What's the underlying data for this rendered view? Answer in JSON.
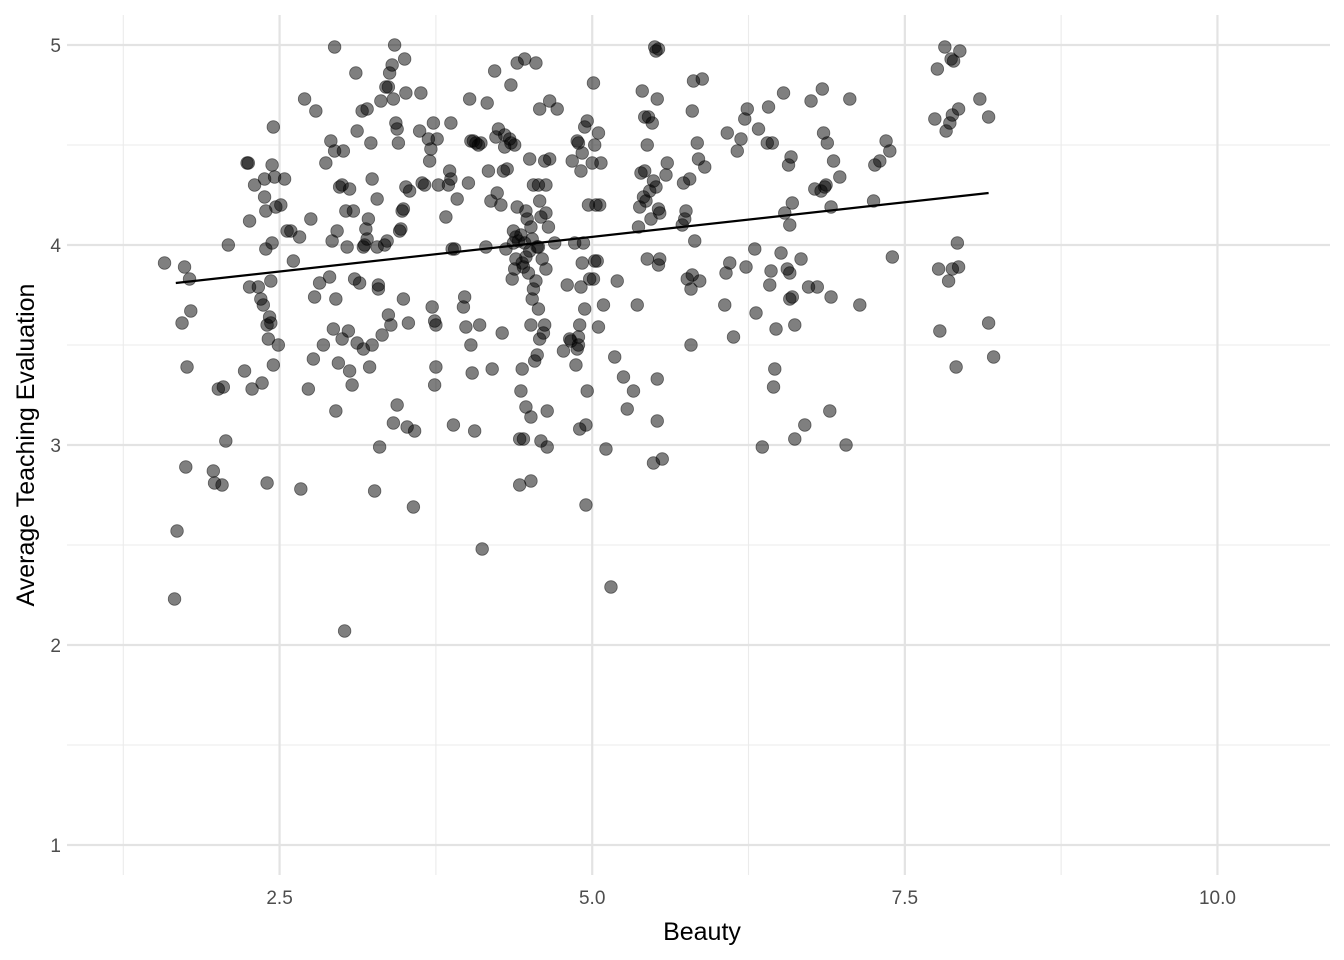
{
  "chart_data": {
    "type": "scatter",
    "title": "",
    "xlabel": "Beauty",
    "ylabel": "Average Teaching Evaluation",
    "xlim": [
      0.8,
      10.9
    ],
    "ylim": [
      0.85,
      5.15
    ],
    "x_major_ticks": [
      2.5,
      5.0,
      7.5,
      10.0
    ],
    "x_minor_ticks": [
      1.25,
      3.75,
      6.25,
      8.75
    ],
    "y_major_ticks": [
      1,
      2,
      3,
      4,
      5
    ],
    "y_minor_ticks": [
      1.5,
      2.5,
      3.5,
      4.5
    ],
    "x_tick_labels": [
      "2.5",
      "5.0",
      "7.5",
      "10.0"
    ],
    "y_tick_labels": [
      "1",
      "2",
      "3",
      "4",
      "5"
    ],
    "grid": true,
    "legend": "none",
    "point_color": "#000000",
    "point_opacity": 0.5,
    "fit_line": {
      "type": "linear",
      "x": [
        1.67,
        8.17
      ],
      "y": [
        3.81,
        4.26
      ],
      "color": "#000000"
    },
    "points": [
      [
        1.58,
        3.91
      ],
      [
        1.66,
        2.23
      ],
      [
        1.68,
        2.57
      ],
      [
        1.72,
        3.61
      ],
      [
        1.74,
        3.89
      ],
      [
        1.75,
        2.89
      ],
      [
        1.76,
        3.39
      ],
      [
        1.78,
        3.83
      ],
      [
        1.79,
        3.67
      ],
      [
        1.97,
        2.87
      ],
      [
        1.98,
        2.81
      ],
      [
        2.01,
        3.28
      ],
      [
        2.04,
        2.8
      ],
      [
        2.05,
        3.29
      ],
      [
        2.07,
        3.02
      ],
      [
        2.09,
        4.0
      ],
      [
        2.22,
        3.37
      ],
      [
        2.24,
        4.41
      ],
      [
        2.25,
        4.41
      ],
      [
        2.26,
        4.12
      ],
      [
        2.26,
        3.79
      ],
      [
        2.28,
        3.28
      ],
      [
        2.3,
        4.3
      ],
      [
        2.33,
        3.79
      ],
      [
        2.35,
        3.73
      ],
      [
        2.36,
        3.31
      ],
      [
        2.37,
        3.7
      ],
      [
        2.38,
        4.33
      ],
      [
        2.38,
        4.24
      ],
      [
        2.39,
        4.17
      ],
      [
        2.39,
        3.98
      ],
      [
        2.4,
        3.6
      ],
      [
        2.4,
        2.81
      ],
      [
        2.41,
        3.53
      ],
      [
        2.42,
        3.64
      ],
      [
        2.43,
        3.61
      ],
      [
        2.43,
        3.82
      ],
      [
        2.44,
        4.01
      ],
      [
        2.44,
        4.4
      ],
      [
        2.45,
        3.4
      ],
      [
        2.45,
        4.59
      ],
      [
        2.46,
        4.34
      ],
      [
        2.47,
        4.19
      ],
      [
        2.49,
        3.5
      ],
      [
        2.51,
        4.2
      ],
      [
        2.54,
        4.33
      ],
      [
        2.56,
        4.07
      ],
      [
        2.59,
        4.07
      ],
      [
        2.61,
        3.92
      ],
      [
        2.66,
        4.04
      ],
      [
        2.67,
        2.78
      ],
      [
        2.7,
        4.73
      ],
      [
        2.73,
        3.28
      ],
      [
        2.75,
        4.13
      ],
      [
        2.77,
        3.43
      ],
      [
        2.78,
        3.74
      ],
      [
        2.79,
        4.67
      ],
      [
        2.82,
        3.81
      ],
      [
        2.85,
        3.5
      ],
      [
        2.87,
        4.41
      ],
      [
        2.9,
        3.84
      ],
      [
        2.91,
        4.52
      ],
      [
        2.92,
        4.02
      ],
      [
        2.93,
        3.58
      ],
      [
        2.94,
        4.99
      ],
      [
        2.94,
        4.47
      ],
      [
        2.95,
        3.73
      ],
      [
        2.95,
        3.17
      ],
      [
        2.96,
        4.07
      ],
      [
        2.97,
        3.41
      ],
      [
        2.98,
        4.29
      ],
      [
        3.0,
        4.3
      ],
      [
        3.0,
        3.53
      ],
      [
        3.01,
        4.47
      ],
      [
        3.02,
        2.07
      ],
      [
        3.03,
        4.17
      ],
      [
        3.04,
        3.99
      ],
      [
        3.05,
        3.57
      ],
      [
        3.06,
        3.37
      ],
      [
        3.06,
        4.28
      ],
      [
        3.08,
        3.3
      ],
      [
        3.09,
        4.17
      ],
      [
        3.1,
        3.83
      ],
      [
        3.11,
        4.86
      ],
      [
        3.12,
        3.51
      ],
      [
        3.12,
        4.57
      ],
      [
        3.14,
        3.81
      ],
      [
        3.16,
        4.67
      ],
      [
        3.17,
        3.48
      ],
      [
        3.17,
        3.99
      ],
      [
        3.18,
        4.0
      ],
      [
        3.19,
        4.08
      ],
      [
        3.2,
        4.03
      ],
      [
        3.2,
        4.68
      ],
      [
        3.21,
        4.13
      ],
      [
        3.22,
        3.39
      ],
      [
        3.23,
        4.51
      ],
      [
        3.24,
        4.33
      ],
      [
        3.24,
        3.5
      ],
      [
        3.26,
        2.77
      ],
      [
        3.28,
        3.99
      ],
      [
        3.28,
        4.23
      ],
      [
        3.29,
        3.78
      ],
      [
        3.29,
        3.8
      ],
      [
        3.3,
        2.99
      ],
      [
        3.31,
        4.72
      ],
      [
        3.32,
        3.55
      ],
      [
        3.34,
        4.0
      ],
      [
        3.35,
        4.79
      ],
      [
        3.36,
        4.02
      ],
      [
        3.37,
        3.65
      ],
      [
        3.37,
        4.79
      ],
      [
        3.38,
        4.86
      ],
      [
        3.39,
        3.6
      ],
      [
        3.4,
        4.9
      ],
      [
        3.41,
        3.11
      ],
      [
        3.41,
        4.73
      ],
      [
        3.42,
        5.0
      ],
      [
        3.43,
        4.61
      ],
      [
        3.44,
        4.58
      ],
      [
        3.44,
        3.2
      ],
      [
        3.45,
        4.51
      ],
      [
        3.46,
        4.07
      ],
      [
        3.47,
        4.08
      ],
      [
        3.48,
        4.17
      ],
      [
        3.49,
        4.18
      ],
      [
        3.49,
        3.73
      ],
      [
        3.5,
        4.93
      ],
      [
        3.51,
        4.76
      ],
      [
        3.51,
        4.29
      ],
      [
        3.52,
        3.09
      ],
      [
        3.53,
        3.61
      ],
      [
        3.54,
        4.27
      ],
      [
        3.57,
        2.69
      ],
      [
        3.58,
        3.07
      ],
      [
        3.62,
        4.57
      ],
      [
        3.63,
        4.76
      ],
      [
        3.64,
        4.31
      ],
      [
        3.66,
        4.3
      ],
      [
        3.69,
        4.53
      ],
      [
        3.7,
        4.42
      ],
      [
        3.71,
        4.48
      ],
      [
        3.72,
        3.69
      ],
      [
        3.73,
        4.61
      ],
      [
        3.74,
        3.3
      ],
      [
        3.74,
        3.62
      ],
      [
        3.75,
        3.39
      ],
      [
        3.75,
        3.6
      ],
      [
        3.76,
        4.53
      ],
      [
        3.77,
        4.3
      ],
      [
        3.83,
        4.14
      ],
      [
        3.85,
        4.3
      ],
      [
        3.86,
        4.37
      ],
      [
        3.87,
        4.33
      ],
      [
        3.87,
        4.61
      ],
      [
        3.88,
        3.98
      ],
      [
        3.89,
        3.1
      ],
      [
        3.9,
        3.98
      ],
      [
        3.92,
        4.23
      ],
      [
        3.97,
        3.69
      ],
      [
        3.98,
        3.74
      ],
      [
        3.99,
        3.59
      ],
      [
        4.01,
        4.31
      ],
      [
        4.02,
        4.73
      ],
      [
        4.03,
        4.52
      ],
      [
        4.03,
        3.5
      ],
      [
        4.04,
        3.36
      ],
      [
        4.05,
        4.52
      ],
      [
        4.06,
        3.07
      ],
      [
        4.07,
        4.51
      ],
      [
        4.09,
        4.5
      ],
      [
        4.1,
        3.6
      ],
      [
        4.11,
        4.51
      ],
      [
        4.12,
        2.48
      ],
      [
        4.15,
        3.99
      ],
      [
        4.16,
        4.71
      ],
      [
        4.17,
        4.37
      ],
      [
        4.19,
        4.22
      ],
      [
        4.2,
        3.38
      ],
      [
        4.22,
        4.87
      ],
      [
        4.23,
        4.54
      ],
      [
        4.24,
        4.26
      ],
      [
        4.25,
        4.58
      ],
      [
        4.27,
        4.2
      ],
      [
        4.28,
        3.56
      ],
      [
        4.29,
        4.37
      ],
      [
        4.3,
        4.55
      ],
      [
        4.3,
        4.49
      ],
      [
        4.31,
        3.98
      ],
      [
        4.32,
        4.38
      ],
      [
        4.34,
        4.53
      ],
      [
        4.35,
        4.8
      ],
      [
        4.35,
        4.51
      ],
      [
        4.36,
        3.83
      ],
      [
        4.37,
        4.07
      ],
      [
        4.37,
        4.01
      ],
      [
        4.38,
        4.5
      ],
      [
        4.38,
        3.88
      ],
      [
        4.39,
        4.04
      ],
      [
        4.39,
        3.93
      ],
      [
        4.4,
        4.19
      ],
      [
        4.4,
        4.91
      ],
      [
        4.41,
        4.02
      ],
      [
        4.42,
        2.8
      ],
      [
        4.42,
        3.03
      ],
      [
        4.43,
        3.27
      ],
      [
        4.43,
        4.05
      ],
      [
        4.44,
        3.38
      ],
      [
        4.44,
        3.91
      ],
      [
        4.45,
        3.03
      ],
      [
        4.45,
        3.89
      ],
      [
        4.46,
        4.93
      ],
      [
        4.46,
        4.01
      ],
      [
        4.47,
        3.19
      ],
      [
        4.47,
        4.17
      ],
      [
        4.47,
        3.94
      ],
      [
        4.48,
        4.13
      ],
      [
        4.49,
        3.86
      ],
      [
        4.5,
        3.97
      ],
      [
        4.5,
        4.43
      ],
      [
        4.51,
        2.82
      ],
      [
        4.51,
        3.14
      ],
      [
        4.51,
        3.6
      ],
      [
        4.51,
        4.09
      ],
      [
        4.52,
        4.03
      ],
      [
        4.52,
        3.73
      ],
      [
        4.53,
        3.78
      ],
      [
        4.53,
        4.3
      ],
      [
        4.54,
        3.42
      ],
      [
        4.55,
        4.91
      ],
      [
        4.55,
        3.82
      ],
      [
        4.56,
        3.99
      ],
      [
        4.56,
        3.45
      ],
      [
        4.57,
        3.99
      ],
      [
        4.57,
        4.3
      ],
      [
        4.57,
        3.68
      ],
      [
        4.58,
        4.22
      ],
      [
        4.58,
        4.68
      ],
      [
        4.58,
        3.53
      ],
      [
        4.59,
        4.14
      ],
      [
        4.59,
        3.02
      ],
      [
        4.6,
        3.93
      ],
      [
        4.61,
        3.56
      ],
      [
        4.62,
        3.6
      ],
      [
        4.62,
        4.42
      ],
      [
        4.63,
        4.16
      ],
      [
        4.63,
        3.88
      ],
      [
        4.63,
        4.3
      ],
      [
        4.64,
        2.99
      ],
      [
        4.64,
        3.17
      ],
      [
        4.65,
        4.09
      ],
      [
        4.66,
        4.43
      ],
      [
        4.66,
        4.72
      ],
      [
        4.7,
        4.01
      ],
      [
        4.72,
        4.68
      ],
      [
        4.77,
        3.47
      ],
      [
        4.8,
        3.8
      ],
      [
        4.82,
        3.53
      ],
      [
        4.83,
        3.52
      ],
      [
        4.84,
        4.42
      ],
      [
        4.86,
        4.01
      ],
      [
        4.87,
        3.4
      ],
      [
        4.88,
        3.48
      ],
      [
        4.88,
        4.52
      ],
      [
        4.89,
        3.54
      ],
      [
        4.89,
        3.5
      ],
      [
        4.89,
        4.51
      ],
      [
        4.9,
        3.08
      ],
      [
        4.9,
        3.6
      ],
      [
        4.91,
        3.79
      ],
      [
        4.91,
        4.37
      ],
      [
        4.92,
        3.91
      ],
      [
        4.92,
        4.46
      ],
      [
        4.93,
        4.01
      ],
      [
        4.94,
        3.68
      ],
      [
        4.94,
        4.59
      ],
      [
        4.95,
        3.1
      ],
      [
        4.95,
        2.7
      ],
      [
        4.96,
        4.62
      ],
      [
        4.96,
        3.27
      ],
      [
        4.97,
        4.2
      ],
      [
        4.98,
        3.83
      ],
      [
        5.0,
        4.41
      ],
      [
        5.01,
        3.83
      ],
      [
        5.01,
        4.81
      ],
      [
        5.02,
        3.92
      ],
      [
        5.02,
        4.5
      ],
      [
        5.03,
        4.2
      ],
      [
        5.04,
        3.92
      ],
      [
        5.05,
        4.56
      ],
      [
        5.05,
        3.59
      ],
      [
        5.06,
        4.2
      ],
      [
        5.07,
        4.41
      ],
      [
        5.09,
        3.7
      ],
      [
        5.11,
        2.98
      ],
      [
        5.15,
        2.29
      ],
      [
        5.18,
        3.44
      ],
      [
        5.2,
        3.82
      ],
      [
        5.25,
        3.34
      ],
      [
        5.28,
        3.18
      ],
      [
        5.33,
        3.27
      ],
      [
        5.36,
        3.7
      ],
      [
        5.37,
        4.09
      ],
      [
        5.38,
        4.19
      ],
      [
        5.39,
        4.36
      ],
      [
        5.4,
        4.77
      ],
      [
        5.41,
        4.24
      ],
      [
        5.42,
        4.64
      ],
      [
        5.42,
        4.37
      ],
      [
        5.43,
        4.22
      ],
      [
        5.44,
        4.5
      ],
      [
        5.44,
        3.93
      ],
      [
        5.45,
        4.64
      ],
      [
        5.46,
        4.27
      ],
      [
        5.47,
        4.13
      ],
      [
        5.48,
        4.61
      ],
      [
        5.49,
        4.32
      ],
      [
        5.49,
        2.91
      ],
      [
        5.5,
        4.99
      ],
      [
        5.51,
        4.97
      ],
      [
        5.51,
        4.29
      ],
      [
        5.52,
        4.73
      ],
      [
        5.52,
        3.33
      ],
      [
        5.52,
        3.12
      ],
      [
        5.53,
        3.9
      ],
      [
        5.53,
        4.18
      ],
      [
        5.53,
        4.98
      ],
      [
        5.54,
        4.16
      ],
      [
        5.54,
        3.93
      ],
      [
        5.56,
        2.93
      ],
      [
        5.59,
        4.35
      ],
      [
        5.6,
        4.41
      ],
      [
        5.72,
        4.1
      ],
      [
        5.73,
        4.31
      ],
      [
        5.74,
        4.13
      ],
      [
        5.75,
        4.17
      ],
      [
        5.76,
        3.83
      ],
      [
        5.78,
        4.33
      ],
      [
        5.79,
        3.5
      ],
      [
        5.79,
        3.78
      ],
      [
        5.8,
        4.67
      ],
      [
        5.8,
        3.85
      ],
      [
        5.81,
        4.82
      ],
      [
        5.82,
        4.02
      ],
      [
        5.84,
        4.51
      ],
      [
        5.85,
        4.43
      ],
      [
        5.86,
        3.82
      ],
      [
        5.88,
        4.83
      ],
      [
        5.9,
        4.39
      ],
      [
        6.06,
        3.7
      ],
      [
        6.07,
        3.86
      ],
      [
        6.08,
        4.56
      ],
      [
        6.1,
        3.91
      ],
      [
        6.13,
        3.54
      ],
      [
        6.16,
        4.47
      ],
      [
        6.19,
        4.53
      ],
      [
        6.22,
        4.63
      ],
      [
        6.23,
        3.89
      ],
      [
        6.24,
        4.68
      ],
      [
        6.3,
        3.98
      ],
      [
        6.31,
        3.66
      ],
      [
        6.33,
        4.58
      ],
      [
        6.36,
        2.99
      ],
      [
        6.4,
        4.51
      ],
      [
        6.41,
        4.69
      ],
      [
        6.42,
        3.8
      ],
      [
        6.43,
        3.87
      ],
      [
        6.44,
        4.51
      ],
      [
        6.45,
        3.29
      ],
      [
        6.46,
        3.38
      ],
      [
        6.47,
        3.58
      ],
      [
        6.51,
        3.96
      ],
      [
        6.53,
        4.76
      ],
      [
        6.54,
        4.16
      ],
      [
        6.56,
        3.88
      ],
      [
        6.57,
        4.4
      ],
      [
        6.58,
        4.1
      ],
      [
        6.58,
        3.86
      ],
      [
        6.58,
        3.73
      ],
      [
        6.59,
        4.44
      ],
      [
        6.6,
        4.21
      ],
      [
        6.6,
        3.74
      ],
      [
        6.62,
        3.6
      ],
      [
        6.62,
        3.03
      ],
      [
        6.67,
        3.93
      ],
      [
        6.7,
        3.1
      ],
      [
        6.73,
        3.79
      ],
      [
        6.75,
        4.72
      ],
      [
        6.78,
        4.28
      ],
      [
        6.8,
        3.79
      ],
      [
        6.83,
        4.27
      ],
      [
        6.84,
        4.78
      ],
      [
        6.85,
        4.56
      ],
      [
        6.86,
        4.29
      ],
      [
        6.87,
        4.3
      ],
      [
        6.88,
        4.51
      ],
      [
        6.9,
        3.17
      ],
      [
        6.91,
        4.19
      ],
      [
        6.91,
        3.74
      ],
      [
        6.93,
        4.42
      ],
      [
        6.98,
        4.34
      ],
      [
        7.03,
        3.0
      ],
      [
        7.06,
        4.73
      ],
      [
        7.14,
        3.7
      ],
      [
        7.25,
        4.22
      ],
      [
        7.26,
        4.4
      ],
      [
        7.3,
        4.42
      ],
      [
        7.35,
        4.52
      ],
      [
        7.38,
        4.47
      ],
      [
        7.4,
        3.94
      ],
      [
        7.74,
        4.63
      ],
      [
        7.76,
        4.88
      ],
      [
        7.77,
        3.88
      ],
      [
        7.78,
        3.57
      ],
      [
        7.82,
        4.99
      ],
      [
        7.83,
        4.57
      ],
      [
        7.85,
        3.82
      ],
      [
        7.86,
        4.61
      ],
      [
        7.87,
        4.93
      ],
      [
        7.88,
        4.65
      ],
      [
        7.88,
        3.88
      ],
      [
        7.89,
        4.92
      ],
      [
        7.91,
        3.39
      ],
      [
        7.92,
        4.01
      ],
      [
        7.93,
        4.68
      ],
      [
        7.93,
        3.89
      ],
      [
        7.94,
        4.97
      ],
      [
        8.1,
        4.73
      ],
      [
        8.17,
        3.61
      ],
      [
        8.17,
        4.64
      ],
      [
        8.21,
        3.44
      ]
    ]
  }
}
